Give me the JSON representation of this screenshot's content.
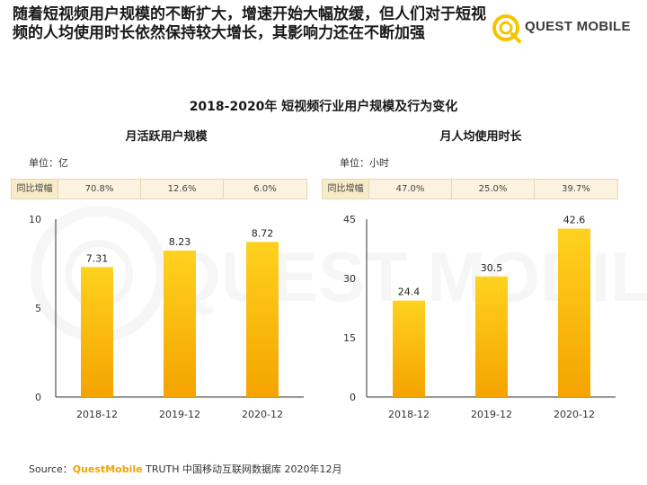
{
  "headline": "随着短视频用户规模的不断扩大，增速开始大幅放缓，但人们对于短视频的人均使用时长依然保持较大增长，其影响力还在不断加强",
  "logo": {
    "text": "QUEST MOBILE",
    "icon": "quest-mobile-logo-icon",
    "color": "#f5c400"
  },
  "watermark": "QUEST MOBILE",
  "main_title": "2018-2020年 短视频行业用户规模及行为变化",
  "colors": {
    "bar_top": "#ffd21f",
    "bar_bottom": "#f5a300",
    "table_bg": "#fbf3df",
    "brand": "#f0a500"
  },
  "panels": [
    {
      "title": "月活跃用户规模",
      "unit": "单位：亿",
      "growth_label": "同比增幅",
      "growth": [
        "70.8%",
        "12.6%",
        "6.0%"
      ]
    },
    {
      "title": "月人均使用时长",
      "unit": "单位：小时",
      "growth_label": "同比增幅",
      "growth": [
        "47.0%",
        "25.0%",
        "39.7%"
      ]
    }
  ],
  "chart_data": [
    {
      "type": "bar",
      "title": "月活跃用户规模",
      "categories": [
        "2018-12",
        "2019-12",
        "2020-12"
      ],
      "values": [
        7.31,
        8.23,
        8.72
      ],
      "value_labels": [
        "7.31",
        "8.23",
        "8.72"
      ],
      "ylim": [
        0,
        10
      ],
      "yticks": [
        "0",
        "5",
        "10"
      ],
      "ylabel": "单位：亿",
      "grid": false,
      "legend": "none"
    },
    {
      "type": "bar",
      "title": "月人均使用时长",
      "categories": [
        "2018-12",
        "2019-12",
        "2020-12"
      ],
      "values": [
        24.4,
        30.5,
        42.6
      ],
      "value_labels": [
        "24.4",
        "30.5",
        "42.6"
      ],
      "ylim": [
        0,
        45
      ],
      "yticks": [
        "0",
        "15",
        "30",
        "45"
      ],
      "ylabel": "单位：小时",
      "grid": false,
      "legend": "none"
    }
  ],
  "source": {
    "prefix": "Source：",
    "brand": "QuestMobile",
    "rest": " TRUTH 中国移动互联网数据库 2020年12月"
  }
}
